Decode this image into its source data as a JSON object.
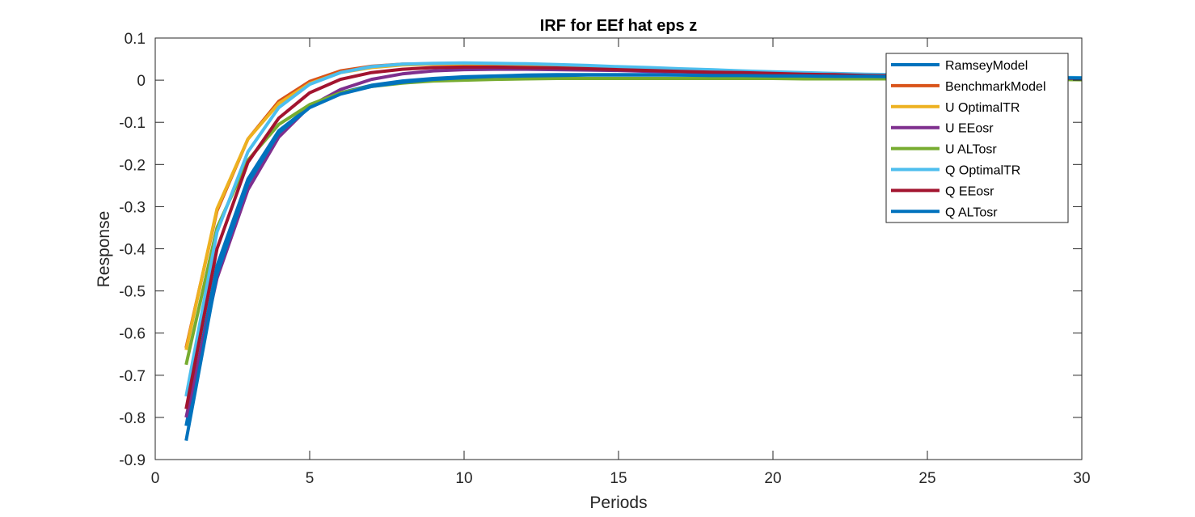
{
  "chart_data": {
    "type": "line",
    "title": "IRF for EEf hat eps z",
    "xlabel": "Periods",
    "ylabel": "Response",
    "xlim": [
      0,
      30
    ],
    "ylim": [
      -0.9,
      0.1
    ],
    "xticks": [
      0,
      5,
      10,
      15,
      20,
      25,
      30
    ],
    "xtick_labels": [
      "0",
      "5",
      "10",
      "15",
      "20",
      "25",
      "30"
    ],
    "yticks": [
      0.1,
      0,
      -0.1,
      -0.2,
      -0.3,
      -0.4,
      -0.5,
      -0.6,
      -0.7,
      -0.8,
      -0.9
    ],
    "ytick_labels": [
      "0.1",
      "0",
      "-0.1",
      "-0.2",
      "-0.3",
      "-0.4",
      "-0.5",
      "-0.6",
      "-0.7",
      "-0.8",
      "-0.9"
    ],
    "grid": false,
    "legend_position": "top-right",
    "x": [
      1,
      2,
      3,
      4,
      5,
      6,
      7,
      8,
      9,
      10,
      11,
      12,
      13,
      14,
      15,
      16,
      17,
      18,
      19,
      20,
      21,
      22,
      23,
      24,
      25,
      26,
      27,
      28,
      29,
      30
    ],
    "series": [
      {
        "name": "RamseyModel",
        "color": "#0072bd",
        "values": [
          -0.82,
          -0.44,
          -0.235,
          -0.12,
          -0.063,
          -0.03,
          -0.012,
          -0.002,
          0.004,
          0.008,
          0.01,
          0.012,
          0.013,
          0.013,
          0.013,
          0.013,
          0.012,
          0.012,
          0.011,
          0.011,
          0.01,
          0.01,
          0.009,
          0.009,
          0.008,
          0.008,
          0.007,
          0.007,
          0.006,
          0.006
        ]
      },
      {
        "name": "BenchmarkModel",
        "color": "#d95319",
        "values": [
          -0.635,
          -0.31,
          -0.14,
          -0.05,
          -0.003,
          0.022,
          0.033,
          0.038,
          0.039,
          0.039,
          0.037,
          0.035,
          0.033,
          0.031,
          0.028,
          0.026,
          0.024,
          0.022,
          0.02,
          0.018,
          0.016,
          0.015,
          0.013,
          0.012,
          0.01,
          0.009,
          0.008,
          0.007,
          0.006,
          0.005
        ]
      },
      {
        "name": "U OptimalTR",
        "color": "#edb120",
        "values": [
          -0.64,
          -0.305,
          -0.14,
          -0.055,
          -0.008,
          0.018,
          0.03,
          0.036,
          0.038,
          0.038,
          0.037,
          0.035,
          0.033,
          0.031,
          0.028,
          0.026,
          0.024,
          0.022,
          0.02,
          0.018,
          0.016,
          0.014,
          0.013,
          0.011,
          0.01,
          0.009,
          0.008,
          0.007,
          0.006,
          0.005
        ]
      },
      {
        "name": "U EEosr",
        "color": "#7e2f8e",
        "values": [
          -0.8,
          -0.47,
          -0.26,
          -0.135,
          -0.062,
          -0.022,
          0.002,
          0.015,
          0.022,
          0.025,
          0.026,
          0.026,
          0.025,
          0.024,
          0.023,
          0.021,
          0.02,
          0.018,
          0.017,
          0.015,
          0.014,
          0.013,
          0.011,
          0.01,
          0.009,
          0.008,
          0.007,
          0.006,
          0.005,
          0.004
        ]
      },
      {
        "name": "U ALTosr",
        "color": "#77ac30",
        "values": [
          -0.675,
          -0.35,
          -0.19,
          -0.105,
          -0.058,
          -0.03,
          -0.015,
          -0.007,
          -0.002,
          0.0,
          0.002,
          0.003,
          0.004,
          0.004,
          0.004,
          0.004,
          0.004,
          0.004,
          0.004,
          0.004,
          0.003,
          0.003,
          0.003,
          0.003,
          0.002,
          0.002,
          0.002,
          0.002,
          0.002,
          0.001
        ]
      },
      {
        "name": "Q OptimalTR",
        "color": "#4dbeee",
        "values": [
          -0.75,
          -0.36,
          -0.17,
          -0.065,
          -0.01,
          0.018,
          0.032,
          0.038,
          0.04,
          0.041,
          0.04,
          0.039,
          0.037,
          0.035,
          0.032,
          0.03,
          0.027,
          0.025,
          0.022,
          0.02,
          0.018,
          0.016,
          0.014,
          0.013,
          0.011,
          0.01,
          0.009,
          0.008,
          0.007,
          0.006
        ]
      },
      {
        "name": "Q EEosr",
        "color": "#a2142f",
        "values": [
          -0.78,
          -0.4,
          -0.195,
          -0.09,
          -0.03,
          0.002,
          0.018,
          0.026,
          0.03,
          0.031,
          0.031,
          0.03,
          0.029,
          0.027,
          0.025,
          0.023,
          0.021,
          0.019,
          0.018,
          0.016,
          0.014,
          0.013,
          0.011,
          0.01,
          0.009,
          0.008,
          0.007,
          0.006,
          0.005,
          0.004
        ]
      },
      {
        "name": "Q ALTosr",
        "color": "#0072bd",
        "values": [
          -0.855,
          -0.46,
          -0.245,
          -0.125,
          -0.065,
          -0.033,
          -0.015,
          -0.005,
          0.002,
          0.006,
          0.009,
          0.01,
          0.011,
          0.012,
          0.012,
          0.012,
          0.012,
          0.011,
          0.011,
          0.01,
          0.01,
          0.009,
          0.009,
          0.008,
          0.008,
          0.007,
          0.007,
          0.006,
          0.006,
          0.005
        ]
      }
    ]
  }
}
